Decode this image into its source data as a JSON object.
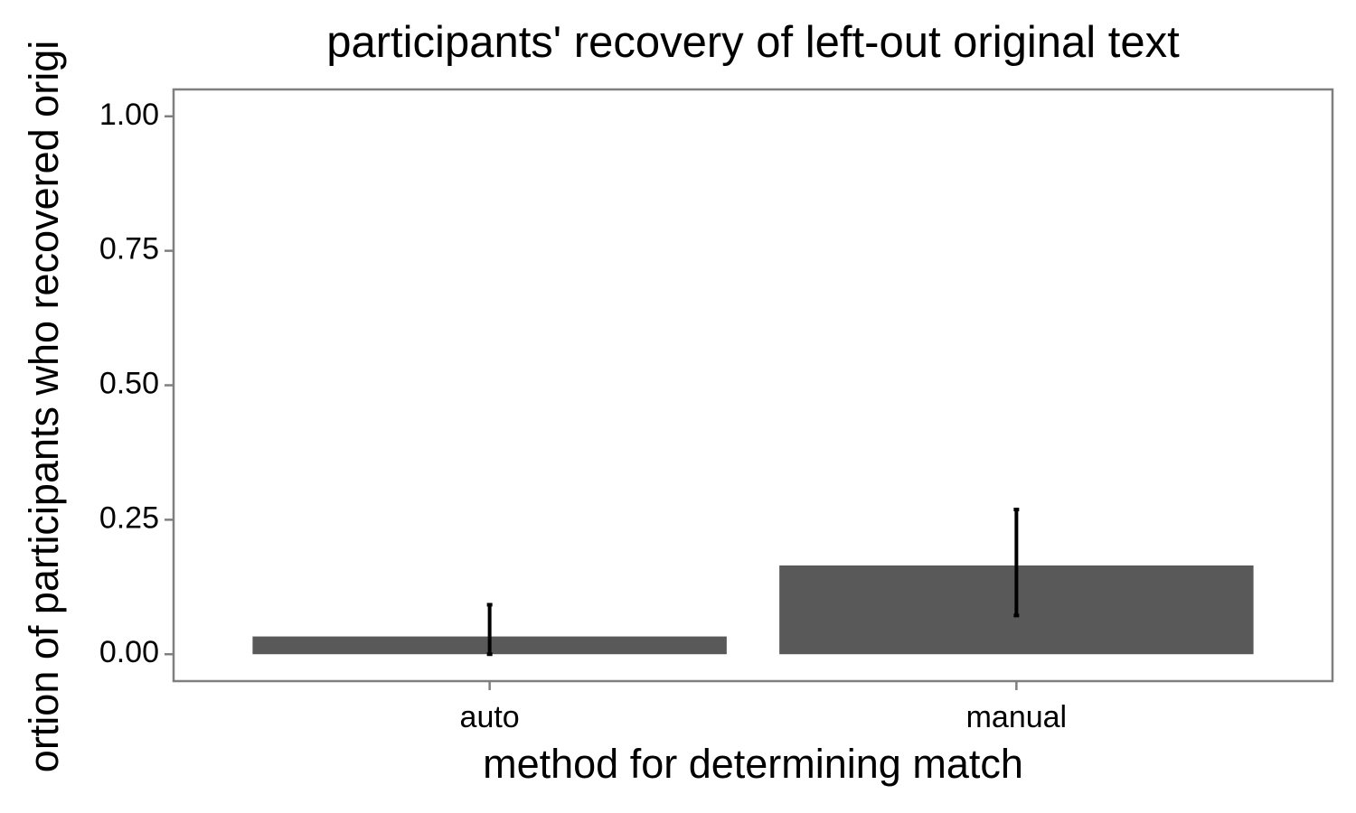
{
  "chart_data": {
    "type": "bar",
    "title": "participants' recovery of left-out original text",
    "x_label": "method for determining match",
    "y_label": "ortion of participants who recovered origi",
    "categories": [
      "auto",
      "manual"
    ],
    "values": [
      0.033,
      0.165
    ],
    "error_lower": [
      0.0,
      0.072
    ],
    "error_upper": [
      0.092,
      0.269
    ],
    "color": "#595959",
    "ylim": [
      -0.05,
      1.05
    ],
    "yticks": [
      {
        "value": 0,
        "label": "0.00"
      },
      {
        "value": 0.25,
        "label": "0.25"
      },
      {
        "value": 0.5,
        "label": "0.50"
      },
      {
        "value": 0.75,
        "label": "0.75"
      },
      {
        "value": 1,
        "label": "1.00"
      }
    ],
    "grid": false
  }
}
